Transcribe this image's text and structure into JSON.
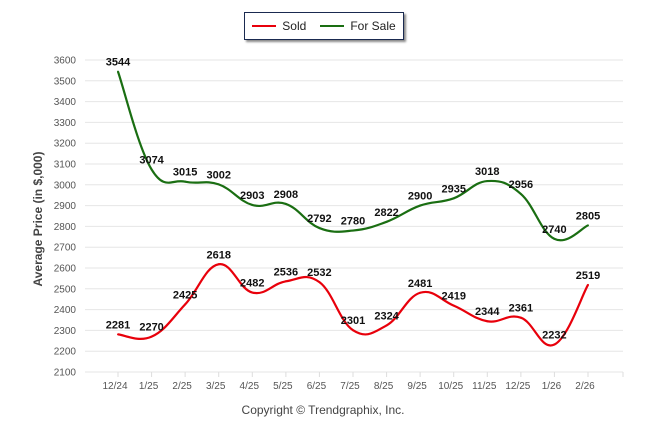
{
  "chart_data": {
    "type": "line",
    "title": "",
    "xlabel": "",
    "ylabel": "Average Price (in $,000)",
    "ylim": [
      2100,
      3600
    ],
    "yticks": [
      2100,
      2200,
      2300,
      2400,
      2500,
      2600,
      2700,
      2800,
      2900,
      3000,
      3100,
      3200,
      3300,
      3400,
      3500,
      3600
    ],
    "grid": true,
    "legend_position": "top-center",
    "categories": [
      "12/24",
      "1/25",
      "2/25",
      "3/25",
      "4/25",
      "5/25",
      "6/25",
      "7/25",
      "8/25",
      "9/25",
      "10/25",
      "11/25",
      "12/25",
      "1/26",
      "2/26"
    ],
    "series": [
      {
        "name": "Sold",
        "color": "#e8000b",
        "values": [
          2281,
          2270,
          2425,
          2618,
          2482,
          2536,
          2532,
          2301,
          2324,
          2481,
          2419,
          2344,
          2361,
          2232,
          2519
        ]
      },
      {
        "name": "For Sale",
        "color": "#1a6e12",
        "values": [
          3544,
          3074,
          3015,
          3002,
          2903,
          2908,
          2792,
          2780,
          2822,
          2900,
          2935,
          3018,
          2956,
          2740,
          2805
        ]
      }
    ]
  },
  "legend": {
    "items": [
      {
        "label": "Sold",
        "color": "#e8000b"
      },
      {
        "label": "For Sale",
        "color": "#1a6e12"
      }
    ]
  },
  "footer": {
    "copyright": "Copyright © Trendgraphix, Inc."
  }
}
